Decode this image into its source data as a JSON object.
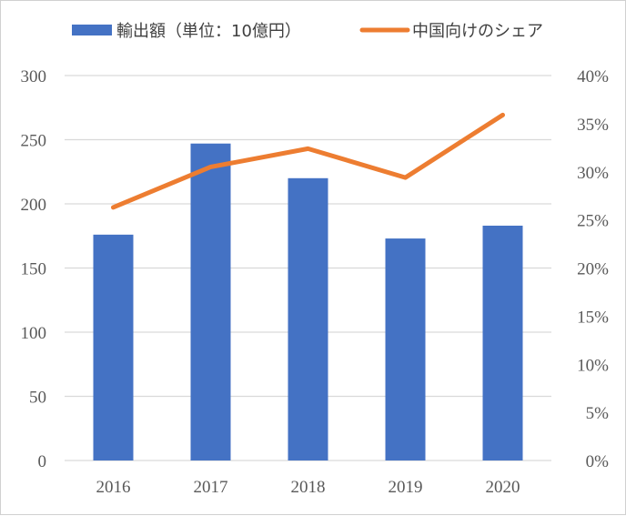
{
  "chart_data": {
    "type": "bar",
    "categories": [
      "2016",
      "2017",
      "2018",
      "2019",
      "2020"
    ],
    "series": [
      {
        "name": "輸出額（単位：10億円）",
        "type": "bar",
        "axis": "left",
        "color": "#4472C4",
        "values": [
          176,
          247,
          220,
          173,
          183
        ]
      },
      {
        "name": "中国向けのシェア",
        "type": "line",
        "axis": "right",
        "color": "#ED7D31",
        "values": [
          26.3,
          30.5,
          32.4,
          29.4,
          35.9
        ]
      }
    ],
    "y_left": {
      "min": 0,
      "max": 300,
      "step": 50,
      "ticks": [
        "0",
        "50",
        "100",
        "150",
        "200",
        "250",
        "300"
      ]
    },
    "y_right": {
      "min": 0,
      "max": 40,
      "step": 5,
      "ticks": [
        "0%",
        "5%",
        "10%",
        "15%",
        "20%",
        "25%",
        "30%",
        "35%",
        "40%"
      ]
    },
    "grid": true,
    "legend": "top"
  }
}
